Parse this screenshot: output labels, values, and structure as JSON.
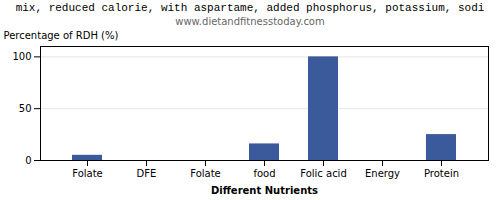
{
  "chart_data": {
    "type": "bar",
    "title": "mix, reduced calorie, with aspartame, added phosphorus, potassium, sodi",
    "subtitle": "www.dietandfitnesstoday.com",
    "xlabel": "Different Nutrients",
    "ylabel": "Percentage of RDH (%)",
    "categories": [
      "Folate",
      "DFE",
      "Folate",
      "food",
      "Folic acid",
      "Energy",
      "Protein"
    ],
    "values": [
      5,
      0,
      0,
      16,
      100,
      0,
      25
    ],
    "color": "#3a5a9b",
    "ylim": [
      0,
      110
    ],
    "yticks": [
      0,
      50,
      100
    ],
    "grid": true
  }
}
